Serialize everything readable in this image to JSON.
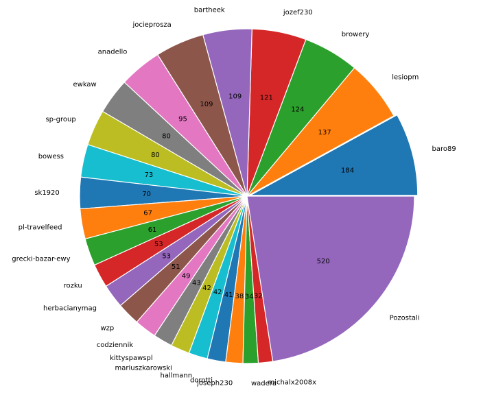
{
  "chart_data": {
    "type": "pie",
    "title": "",
    "start_angle_deg": 0,
    "direction": "counterclockwise",
    "explode_index": 0,
    "slices": [
      {
        "label": "baro89",
        "value": 184,
        "color": "#1f77b4"
      },
      {
        "label": "lesiopm",
        "value": 137,
        "color": "#ff7f0e"
      },
      {
        "label": "browery",
        "value": 124,
        "color": "#2ca02c"
      },
      {
        "label": "jozef230",
        "value": 121,
        "color": "#d62728"
      },
      {
        "label": "bartheek",
        "value": 109,
        "color": "#9467bd"
      },
      {
        "label": "jocieprosza",
        "value": 109,
        "color": "#8c564b"
      },
      {
        "label": "anadello",
        "value": 95,
        "color": "#e377c2"
      },
      {
        "label": "ewkaw",
        "value": 80,
        "color": "#7f7f7f"
      },
      {
        "label": "sp-group",
        "value": 80,
        "color": "#bcbd22"
      },
      {
        "label": "bowess",
        "value": 73,
        "color": "#17becf"
      },
      {
        "label": "sk1920",
        "value": 70,
        "color": "#1f77b4"
      },
      {
        "label": "pl-travelfeed",
        "value": 67,
        "color": "#ff7f0e"
      },
      {
        "label": "grecki-bazar-ewy",
        "value": 61,
        "color": "#2ca02c"
      },
      {
        "label": "rozku",
        "value": 53,
        "color": "#d62728"
      },
      {
        "label": "herbacianymag",
        "value": 53,
        "color": "#9467bd"
      },
      {
        "label": "wzp",
        "value": 51,
        "color": "#8c564b"
      },
      {
        "label": "codziennik",
        "value": 49,
        "color": "#e377c2"
      },
      {
        "label": "kittyspawspl",
        "value": 43,
        "color": "#7f7f7f"
      },
      {
        "label": "mariuszkarowski",
        "value": 42,
        "color": "#bcbd22"
      },
      {
        "label": "hallmann",
        "value": 42,
        "color": "#17becf"
      },
      {
        "label": "dorotti",
        "value": 41,
        "color": "#1f77b4"
      },
      {
        "label": "joseph230",
        "value": 38,
        "color": "#ff7f0e"
      },
      {
        "label": "wadera",
        "value": 34,
        "color": "#2ca02c"
      },
      {
        "label": "michalx2008x",
        "value": 32,
        "color": "#d62728"
      },
      {
        "label": "Pozostali",
        "value": 520,
        "color": "#9467bd"
      }
    ]
  }
}
